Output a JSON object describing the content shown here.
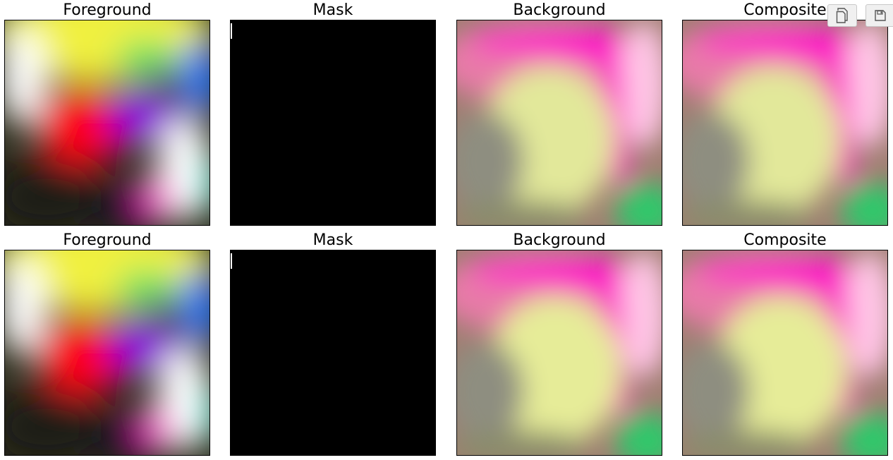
{
  "rows": [
    {
      "titles": [
        "Foreground",
        "Mask",
        "Background",
        "Composite"
      ]
    },
    {
      "titles": [
        "Foreground",
        "Mask",
        "Background",
        "Composite"
      ]
    }
  ],
  "toolbar": {
    "copy_icon": "copy-icon",
    "save_icon": "save-icon"
  },
  "colors": {
    "mask": "#000000",
    "magenta": "#ff00c8",
    "pink": "#e87aa8",
    "yellow_green": "#e2e89a",
    "green": "#2ec86a",
    "red": "#ff0018",
    "purple": "#8a00e0",
    "yellow": "#f0f040",
    "white": "#ffffff",
    "blue": "#2e7cff",
    "cyan": "#00f0e0"
  }
}
